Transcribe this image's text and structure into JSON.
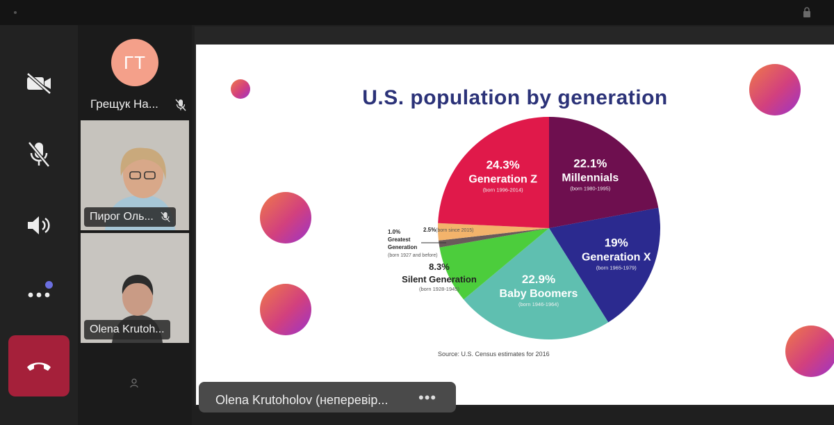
{
  "controls": {
    "camera_icon": "video-off-icon",
    "mic_icon": "mic-off-icon",
    "speaker_icon": "speaker-icon",
    "more_icon": "more-icon",
    "hangup_icon": "hangup-icon"
  },
  "participants": [
    {
      "initials": "ГТ",
      "name": "Грещук На...",
      "muted": true
    },
    {
      "name": "Пирог Оль...",
      "muted": true
    },
    {
      "name": "Olena Krutoh..."
    }
  ],
  "caption": {
    "name": "Olena Krutoholov (неперевір...",
    "more": "•••"
  },
  "slide": {
    "title": "U.S. population by generation",
    "source": "Source: U.S. Census estimates for 2016"
  },
  "chart_data": {
    "type": "pie",
    "title": "U.S. population by generation",
    "slices": [
      {
        "label": "Millennials",
        "percent": "22.1%",
        "value": 22.1,
        "born": "(born 1980-1995)",
        "color": "#6e0f4f"
      },
      {
        "label": "Generation X",
        "percent": "19%",
        "value": 19,
        "born": "(born 1965-1979)",
        "color": "#2b2a8f"
      },
      {
        "label": "Baby Boomers",
        "percent": "22.9%",
        "value": 22.9,
        "born": "(born 1946-1964)",
        "color": "#5fbfb0"
      },
      {
        "label": "Silent Generation",
        "percent": "8.3%",
        "value": 8.3,
        "born": "(born 1928-1945)",
        "color": "#4ccd3c"
      },
      {
        "label": "Greatest Generation",
        "percent": "1.0%",
        "value": 1.0,
        "born": "(born 1927 and before)",
        "color": "#6a5a5a"
      },
      {
        "label": "",
        "percent": "2.5%",
        "value": 2.5,
        "born": "(born since 2015)",
        "color": "#f3b36b"
      },
      {
        "label": "Generation Z",
        "percent": "24.3%",
        "value": 24.3,
        "born": "(born 1996-2014)",
        "color": "#e0194a"
      }
    ],
    "source": "Source: U.S. Census estimates for 2016"
  }
}
